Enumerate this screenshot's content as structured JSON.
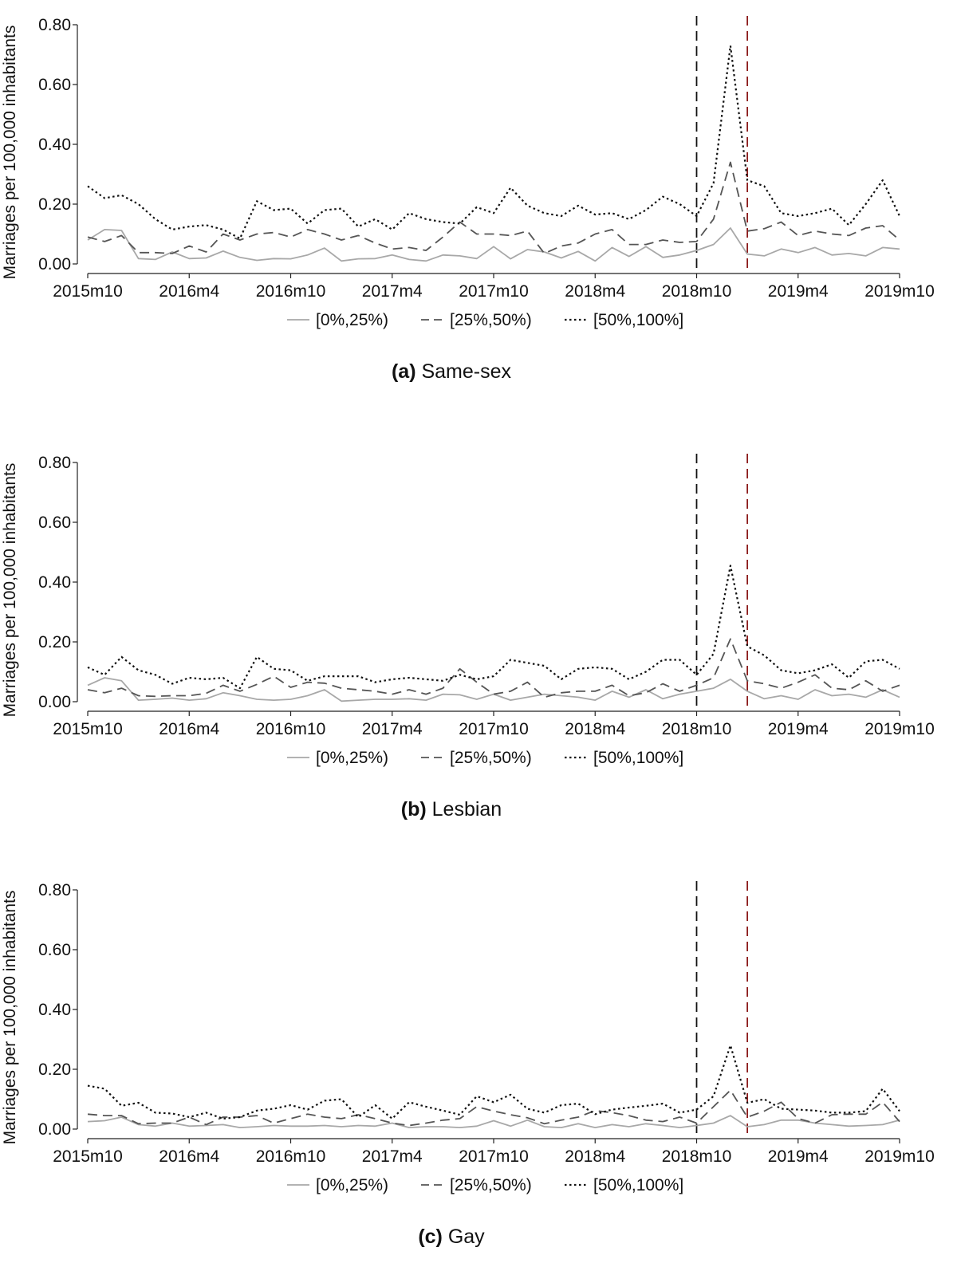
{
  "legend": [
    "[0%,25%)",
    "[25%,50%)",
    "[50%,100%]"
  ],
  "series_styles": {
    "[0%,25%)": {
      "color": "#a8a8a8",
      "dash": "none"
    },
    "[25%,50%)": {
      "color": "#555555",
      "dash": "dashed"
    },
    "[50%,100%]": {
      "color": "#111111",
      "dash": "dotted"
    }
  },
  "reference_lines": [
    {
      "month_index": 36,
      "color": "#111111",
      "style": "dashed"
    },
    {
      "month_index": 39,
      "color": "#8b1a1a",
      "style": "dashed"
    }
  ],
  "chart_data": [
    {
      "type": "line",
      "panel": "(a)",
      "title": "Same-sex",
      "ylabel": "Marriages per 100,000 inhabitants",
      "xlabel": "",
      "ylim": [
        0,
        0.8
      ],
      "yticks": [
        "0.00",
        "0.20",
        "0.40",
        "0.60",
        "0.80"
      ],
      "xticks": [
        "2015m10",
        "2016m4",
        "2016m10",
        "2017m4",
        "2017m10",
        "2018m4",
        "2018m10",
        "2019m4",
        "2019m10"
      ],
      "xtick_index": [
        0,
        6,
        12,
        18,
        24,
        30,
        36,
        42,
        48
      ],
      "x": [
        "2015m10",
        "2015m11",
        "2015m12",
        "2016m1",
        "2016m2",
        "2016m3",
        "2016m4",
        "2016m5",
        "2016m6",
        "2016m7",
        "2016m8",
        "2016m9",
        "2016m10",
        "2016m11",
        "2016m12",
        "2017m1",
        "2017m2",
        "2017m3",
        "2017m4",
        "2017m5",
        "2017m6",
        "2017m7",
        "2017m8",
        "2017m9",
        "2017m10",
        "2017m11",
        "2017m12",
        "2018m1",
        "2018m2",
        "2018m3",
        "2018m4",
        "2018m5",
        "2018m6",
        "2018m7",
        "2018m8",
        "2018m9",
        "2018m10",
        "2018m11",
        "2018m12",
        "2019m1",
        "2019m2",
        "2019m3",
        "2019m4",
        "2019m5",
        "2019m6",
        "2019m7",
        "2019m8",
        "2019m9",
        "2019m10"
      ],
      "grid": false,
      "legend_position": "bottom",
      "series": [
        {
          "name": "[0%,25%)",
          "values": [
            0.08,
            0.115,
            0.112,
            0.018,
            0.015,
            0.04,
            0.018,
            0.02,
            0.043,
            0.022,
            0.012,
            0.018,
            0.017,
            0.03,
            0.053,
            0.01,
            0.017,
            0.018,
            0.03,
            0.015,
            0.01,
            0.03,
            0.027,
            0.018,
            0.058,
            0.017,
            0.048,
            0.04,
            0.02,
            0.042,
            0.01,
            0.055,
            0.025,
            0.058,
            0.022,
            0.03,
            0.045,
            0.065,
            0.12,
            0.033,
            0.027,
            0.05,
            0.038,
            0.055,
            0.03,
            0.035,
            0.027,
            0.055,
            0.05
          ]
        },
        {
          "name": "[25%,50%)",
          "values": [
            0.09,
            0.075,
            0.095,
            0.038,
            0.038,
            0.035,
            0.06,
            0.04,
            0.1,
            0.08,
            0.1,
            0.105,
            0.09,
            0.115,
            0.1,
            0.08,
            0.095,
            0.07,
            0.05,
            0.055,
            0.045,
            0.09,
            0.14,
            0.1,
            0.1,
            0.095,
            0.11,
            0.035,
            0.06,
            0.07,
            0.1,
            0.115,
            0.065,
            0.065,
            0.08,
            0.072,
            0.075,
            0.15,
            0.34,
            0.11,
            0.118,
            0.14,
            0.095,
            0.11,
            0.1,
            0.095,
            0.12,
            0.128,
            0.08
          ]
        },
        {
          "name": "[50%,100%]",
          "values": [
            0.26,
            0.22,
            0.23,
            0.2,
            0.15,
            0.115,
            0.125,
            0.13,
            0.115,
            0.085,
            0.21,
            0.18,
            0.185,
            0.135,
            0.18,
            0.185,
            0.125,
            0.15,
            0.115,
            0.17,
            0.15,
            0.14,
            0.135,
            0.19,
            0.17,
            0.255,
            0.195,
            0.17,
            0.16,
            0.195,
            0.165,
            0.17,
            0.15,
            0.18,
            0.225,
            0.2,
            0.16,
            0.27,
            0.73,
            0.28,
            0.26,
            0.17,
            0.16,
            0.17,
            0.185,
            0.13,
            0.2,
            0.28,
            0.16
          ]
        }
      ]
    },
    {
      "type": "line",
      "panel": "(b)",
      "title": "Lesbian",
      "ylabel": "Marriages per 100,000 inhabitants",
      "xlabel": "",
      "ylim": [
        0,
        0.8
      ],
      "yticks": [
        "0.00",
        "0.20",
        "0.40",
        "0.60",
        "0.80"
      ],
      "xticks": [
        "2015m10",
        "2016m4",
        "2016m10",
        "2017m4",
        "2017m10",
        "2018m4",
        "2018m10",
        "2019m4",
        "2019m10"
      ],
      "xtick_index": [
        0,
        6,
        12,
        18,
        24,
        30,
        36,
        42,
        48
      ],
      "x": [
        "2015m10",
        "2015m11",
        "2015m12",
        "2016m1",
        "2016m2",
        "2016m3",
        "2016m4",
        "2016m5",
        "2016m6",
        "2016m7",
        "2016m8",
        "2016m9",
        "2016m10",
        "2016m11",
        "2016m12",
        "2017m1",
        "2017m2",
        "2017m3",
        "2017m4",
        "2017m5",
        "2017m6",
        "2017m7",
        "2017m8",
        "2017m9",
        "2017m10",
        "2017m11",
        "2017m12",
        "2018m1",
        "2018m2",
        "2018m3",
        "2018m4",
        "2018m5",
        "2018m6",
        "2018m7",
        "2018m8",
        "2018m9",
        "2018m10",
        "2018m11",
        "2018m12",
        "2019m1",
        "2019m2",
        "2019m3",
        "2019m4",
        "2019m5",
        "2019m6",
        "2019m7",
        "2019m8",
        "2019m9",
        "2019m10"
      ],
      "grid": false,
      "legend_position": "bottom",
      "series": [
        {
          "name": "[0%,25%)",
          "values": [
            0.055,
            0.08,
            0.07,
            0.005,
            0.008,
            0.012,
            0.005,
            0.01,
            0.03,
            0.02,
            0.008,
            0.005,
            0.008,
            0.02,
            0.04,
            0.002,
            0.005,
            0.008,
            0.008,
            0.01,
            0.005,
            0.025,
            0.023,
            0.008,
            0.025,
            0.005,
            0.015,
            0.025,
            0.02,
            0.015,
            0.005,
            0.035,
            0.015,
            0.04,
            0.01,
            0.025,
            0.035,
            0.045,
            0.075,
            0.035,
            0.01,
            0.02,
            0.008,
            0.04,
            0.02,
            0.025,
            0.015,
            0.04,
            0.015
          ]
        },
        {
          "name": "[25%,50%)",
          "values": [
            0.04,
            0.03,
            0.045,
            0.02,
            0.018,
            0.02,
            0.02,
            0.028,
            0.055,
            0.035,
            0.058,
            0.085,
            0.048,
            0.065,
            0.062,
            0.045,
            0.04,
            0.035,
            0.025,
            0.04,
            0.025,
            0.045,
            0.11,
            0.065,
            0.025,
            0.035,
            0.065,
            0.015,
            0.03,
            0.035,
            0.035,
            0.055,
            0.02,
            0.03,
            0.06,
            0.035,
            0.055,
            0.08,
            0.21,
            0.07,
            0.06,
            0.045,
            0.065,
            0.09,
            0.045,
            0.04,
            0.07,
            0.035,
            0.055
          ]
        },
        {
          "name": "[50%,100%]",
          "values": [
            0.115,
            0.09,
            0.15,
            0.105,
            0.09,
            0.06,
            0.08,
            0.075,
            0.08,
            0.045,
            0.15,
            0.11,
            0.105,
            0.07,
            0.085,
            0.085,
            0.085,
            0.065,
            0.075,
            0.08,
            0.075,
            0.07,
            0.09,
            0.075,
            0.085,
            0.14,
            0.13,
            0.12,
            0.075,
            0.11,
            0.115,
            0.11,
            0.075,
            0.1,
            0.14,
            0.14,
            0.09,
            0.16,
            0.455,
            0.185,
            0.155,
            0.105,
            0.095,
            0.105,
            0.125,
            0.08,
            0.135,
            0.14,
            0.11
          ]
        }
      ]
    },
    {
      "type": "line",
      "panel": "(c)",
      "title": "Gay",
      "ylabel": "Marriages per 100,000 inhabitants",
      "xlabel": "",
      "ylim": [
        0,
        0.8
      ],
      "yticks": [
        "0.00",
        "0.20",
        "0.40",
        "0.60",
        "0.80"
      ],
      "xticks": [
        "2015m10",
        "2016m4",
        "2016m10",
        "2017m4",
        "2017m10",
        "2018m4",
        "2018m10",
        "2019m4",
        "2019m10"
      ],
      "xtick_index": [
        0,
        6,
        12,
        18,
        24,
        30,
        36,
        42,
        48
      ],
      "x": [
        "2015m10",
        "2015m11",
        "2015m12",
        "2016m1",
        "2016m2",
        "2016m3",
        "2016m4",
        "2016m5",
        "2016m6",
        "2016m7",
        "2016m8",
        "2016m9",
        "2016m10",
        "2016m11",
        "2016m12",
        "2017m1",
        "2017m2",
        "2017m3",
        "2017m4",
        "2017m5",
        "2017m6",
        "2017m7",
        "2017m8",
        "2017m9",
        "2017m10",
        "2017m11",
        "2017m12",
        "2018m1",
        "2018m2",
        "2018m3",
        "2018m4",
        "2018m5",
        "2018m6",
        "2018m7",
        "2018m8",
        "2018m9",
        "2018m10",
        "2018m11",
        "2018m12",
        "2019m1",
        "2019m2",
        "2019m3",
        "2019m4",
        "2019m5",
        "2019m6",
        "2019m7",
        "2019m8",
        "2019m9",
        "2019m10"
      ],
      "grid": false,
      "legend_position": "bottom",
      "series": [
        {
          "name": "[0%,25%)",
          "values": [
            0.025,
            0.028,
            0.04,
            0.015,
            0.01,
            0.02,
            0.01,
            0.012,
            0.015,
            0.005,
            0.008,
            0.012,
            0.01,
            0.01,
            0.012,
            0.008,
            0.012,
            0.01,
            0.02,
            0.005,
            0.008,
            0.008,
            0.005,
            0.01,
            0.028,
            0.01,
            0.03,
            0.008,
            0.005,
            0.018,
            0.005,
            0.015,
            0.008,
            0.018,
            0.012,
            0.005,
            0.012,
            0.02,
            0.045,
            0.008,
            0.015,
            0.03,
            0.03,
            0.02,
            0.015,
            0.01,
            0.012,
            0.015,
            0.03
          ]
        },
        {
          "name": "[25%,50%)",
          "values": [
            0.05,
            0.045,
            0.045,
            0.018,
            0.02,
            0.02,
            0.04,
            0.015,
            0.04,
            0.04,
            0.045,
            0.02,
            0.035,
            0.05,
            0.04,
            0.035,
            0.048,
            0.035,
            0.02,
            0.012,
            0.02,
            0.03,
            0.035,
            0.075,
            0.06,
            0.048,
            0.038,
            0.018,
            0.03,
            0.04,
            0.062,
            0.055,
            0.045,
            0.03,
            0.025,
            0.04,
            0.02,
            0.075,
            0.13,
            0.04,
            0.06,
            0.09,
            0.035,
            0.02,
            0.048,
            0.05,
            0.05,
            0.09,
            0.025
          ]
        },
        {
          "name": "[50%,100%]",
          "values": [
            0.145,
            0.135,
            0.078,
            0.088,
            0.055,
            0.052,
            0.04,
            0.055,
            0.035,
            0.04,
            0.062,
            0.068,
            0.08,
            0.065,
            0.095,
            0.1,
            0.04,
            0.08,
            0.035,
            0.09,
            0.075,
            0.062,
            0.048,
            0.11,
            0.09,
            0.115,
            0.068,
            0.055,
            0.08,
            0.085,
            0.05,
            0.065,
            0.072,
            0.078,
            0.085,
            0.055,
            0.065,
            0.11,
            0.28,
            0.088,
            0.1,
            0.068,
            0.065,
            0.062,
            0.055,
            0.055,
            0.06,
            0.135,
            0.06
          ]
        }
      ]
    }
  ]
}
